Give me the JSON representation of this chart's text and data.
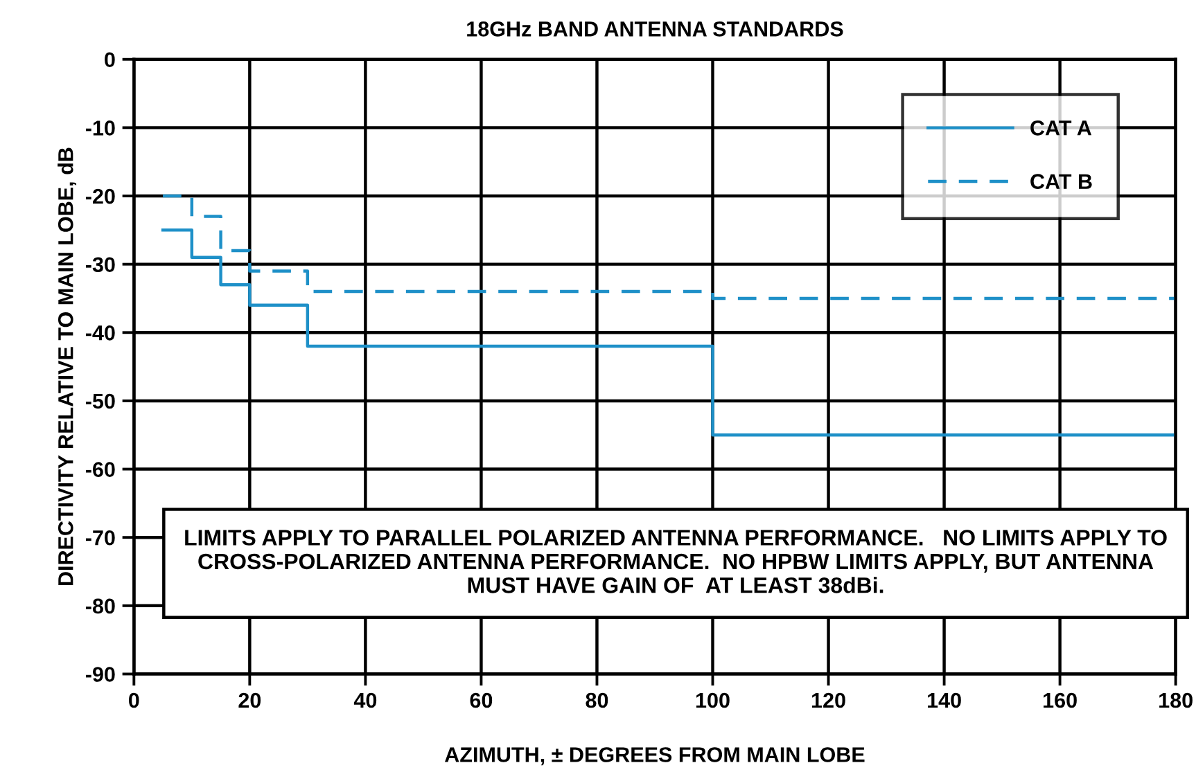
{
  "chart_data": {
    "type": "step",
    "title": "18GHz BAND ANTENNA STANDARDS",
    "xlabel": "AZIMUTH, ± DEGREES FROM MAIN LOBE",
    "ylabel": "DIRECTIVITY RELATIVE TO MAIN LOBE, dB",
    "x": [
      5,
      10,
      15,
      20,
      30,
      100,
      180
    ],
    "series": [
      {
        "name": "CAT A",
        "color": "#1e90c8",
        "line_style": "solid",
        "values": [
          -25,
          -29,
          -33,
          -36,
          -42,
          -55,
          -55
        ]
      },
      {
        "name": "CAT B",
        "color": "#1e90c8",
        "line_style": "dashed",
        "values": [
          -20,
          -23,
          -28,
          -31,
          -34,
          -35,
          -35
        ]
      }
    ],
    "xlim": [
      0,
      180
    ],
    "xticks": [
      0,
      20,
      40,
      60,
      80,
      100,
      120,
      140,
      160,
      180
    ],
    "ylim": [
      -90,
      0
    ],
    "yticks": [
      -90,
      -80,
      -70,
      -60,
      -50,
      -40,
      -30,
      -20,
      -10,
      0
    ],
    "grid": true,
    "legend": "top right",
    "annotations": [
      "LIMITS APPLY TO PARALLEL POLARIZED ANTENNA PERFORMANCE.   NO LIMITS APPLY TO CROSS-POLARIZED ANTENNA PERFORMANCE.  NO HPBW LIMITS APPLY, BUT ANTENNA MUST HAVE GAIN OF  AT LEAST 38dBi."
    ]
  }
}
